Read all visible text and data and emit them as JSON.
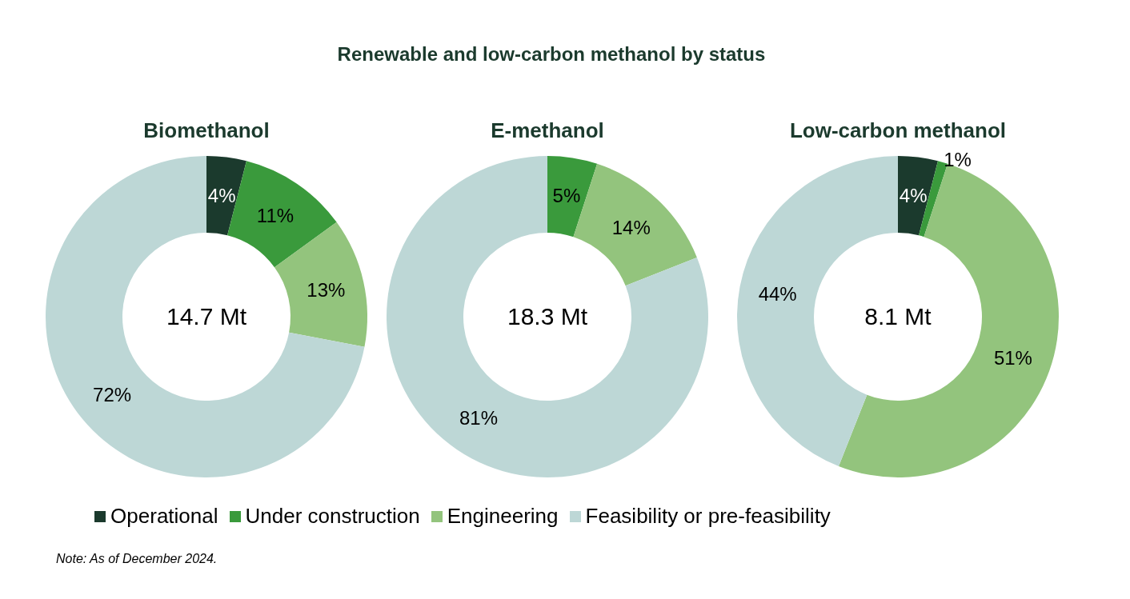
{
  "chart_data": [
    {
      "type": "other",
      "title": "Renewable and low-carbon methanol by status",
      "annotations": [
        "Note: As of December 2024."
      ]
    },
    {
      "type": "donut",
      "title": "Biomethanol",
      "categories": [
        "Operational",
        "Under construction",
        "Engineering",
        "Feasibility or pre-feasibility"
      ],
      "values": [
        4,
        11,
        13,
        72
      ],
      "colors": [
        "#1b3a2d",
        "#3a9a3c",
        "#93c47d",
        "#bdd7d6"
      ],
      "value_labels": [
        "4%",
        "11%",
        "13%",
        "72%"
      ],
      "annotations": [
        "14.7 Mt"
      ],
      "legend": "bottom"
    },
    {
      "type": "donut",
      "title": "E-methanol",
      "categories": [
        null,
        null,
        null,
        null
      ],
      "values": [
        0,
        5,
        14,
        81
      ],
      "colors": [
        "#1b3a2d",
        "#3a9a3c",
        "#93c47d",
        "#bdd7d6"
      ],
      "value_labels": [
        null,
        "5%",
        "14%",
        "81%"
      ],
      "annotations": [
        "18.3 Mt"
      ]
    },
    {
      "type": "donut",
      "title": "Low-carbon methanol",
      "categories": [
        null,
        null,
        null,
        null
      ],
      "values": [
        4,
        1,
        51,
        44
      ],
      "colors": [
        "#1b3a2d",
        "#3a9a3c",
        "#93c47d",
        "#bdd7d6"
      ],
      "value_labels": [
        "4%",
        "1%",
        "51%",
        "44%"
      ],
      "annotations": [
        "8.1 Mt"
      ]
    }
  ]
}
